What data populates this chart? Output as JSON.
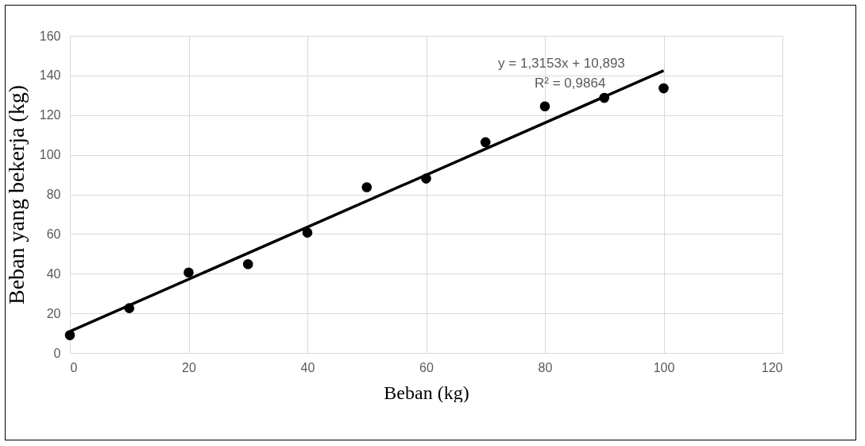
{
  "chart_data": {
    "type": "scatter",
    "xlabel": "Beban (kg)",
    "ylabel": "Beban yang bekerja (kg)",
    "xlim": [
      0,
      120
    ],
    "xticks": [
      0,
      20,
      40,
      60,
      80,
      100,
      120
    ],
    "ylim": [
      0,
      160
    ],
    "yticks": [
      0,
      20,
      40,
      60,
      80,
      100,
      120,
      140,
      160
    ],
    "grid": true,
    "series": [
      {
        "marker": "circle",
        "color": "#000000",
        "x": [
          0,
          10,
          20,
          30,
          40,
          50,
          60,
          70,
          80,
          90,
          100
        ],
        "values": [
          9.0,
          22.6,
          40.6,
          44.8,
          60.7,
          83.6,
          88.0,
          106.3,
          124.4,
          128.7,
          133.5
        ]
      },
      {
        "type": "line",
        "color": "#000000",
        "x": [
          0,
          100
        ],
        "values": [
          10.9,
          142.4
        ]
      }
    ],
    "annotations": [
      "y = 1,3153x + 10,893",
      "R² = 0,9864"
    ]
  }
}
